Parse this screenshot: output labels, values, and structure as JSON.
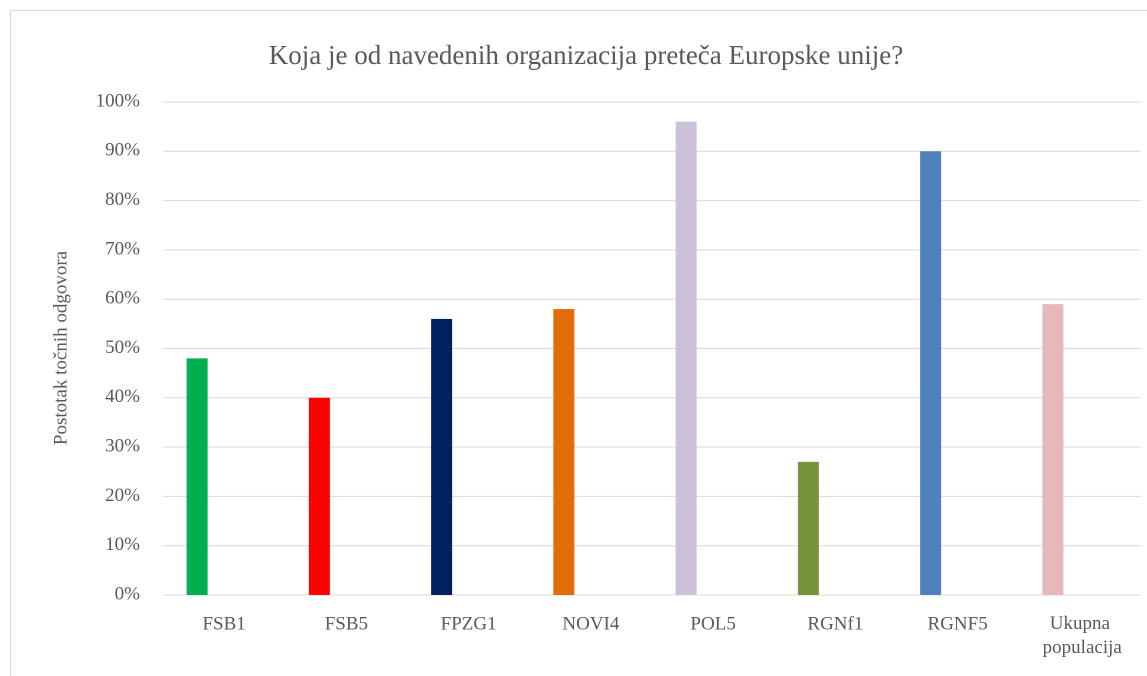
{
  "chart_data": {
    "type": "bar",
    "title": "Koja je od navedenih organizacija preteča Europske unije?",
    "y_label": "Postotak točnih odgovora",
    "categories": [
      "FSB1",
      "FSB5",
      "FPZG1",
      "NOVI4",
      "POL5",
      "RGNf1",
      "RGNF5",
      "Ukupna populacija"
    ],
    "values": [
      48,
      40,
      56,
      58,
      96,
      27,
      90,
      59
    ],
    "colors": [
      "#00b050",
      "#ff0000",
      "#002060",
      "#e36c09",
      "#ccc0da",
      "#77933c",
      "#4f81bd",
      "#e6b9b8"
    ],
    "ylim": [
      0,
      100
    ],
    "yticks": [
      {
        "value": 0,
        "label": "0%"
      },
      {
        "value": 10,
        "label": "10%"
      },
      {
        "value": 20,
        "label": "20%"
      },
      {
        "value": 30,
        "label": "30%"
      },
      {
        "value": 40,
        "label": "40%"
      },
      {
        "value": 50,
        "label": "50%"
      },
      {
        "value": 60,
        "label": "60%"
      },
      {
        "value": 70,
        "label": "70%"
      },
      {
        "value": 80,
        "label": "80%"
      },
      {
        "value": 90,
        "label": "90%"
      },
      {
        "value": 100,
        "label": "100%"
      }
    ],
    "grid": true
  }
}
